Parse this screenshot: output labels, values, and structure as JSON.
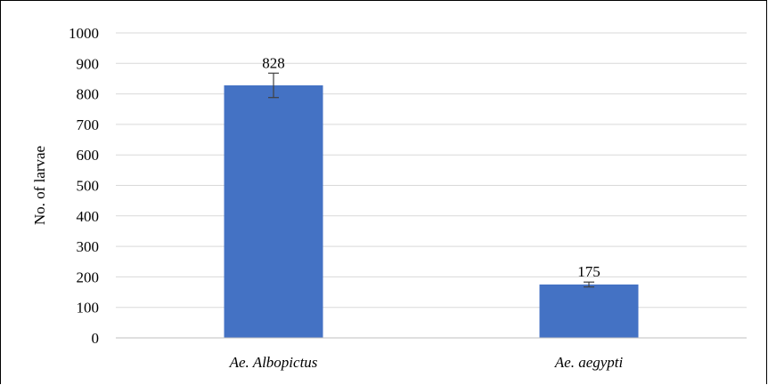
{
  "chart_data": {
    "type": "bar",
    "categories": [
      "Ae. Albopictus",
      "Ae. aegypti"
    ],
    "values": [
      828,
      175
    ],
    "errors": [
      40,
      8
    ],
    "data_labels": [
      "828",
      "175"
    ],
    "title": "",
    "xlabel": "",
    "ylabel": "No. of larvae",
    "ylim": [
      0,
      1000
    ],
    "yticks": [
      0,
      100,
      200,
      300,
      400,
      500,
      600,
      700,
      800,
      900,
      1000
    ],
    "grid": true,
    "legend": "none",
    "bar_color": "#4472C4",
    "error_bar_color": "#404040",
    "grid_color": "#d9d9d9"
  }
}
